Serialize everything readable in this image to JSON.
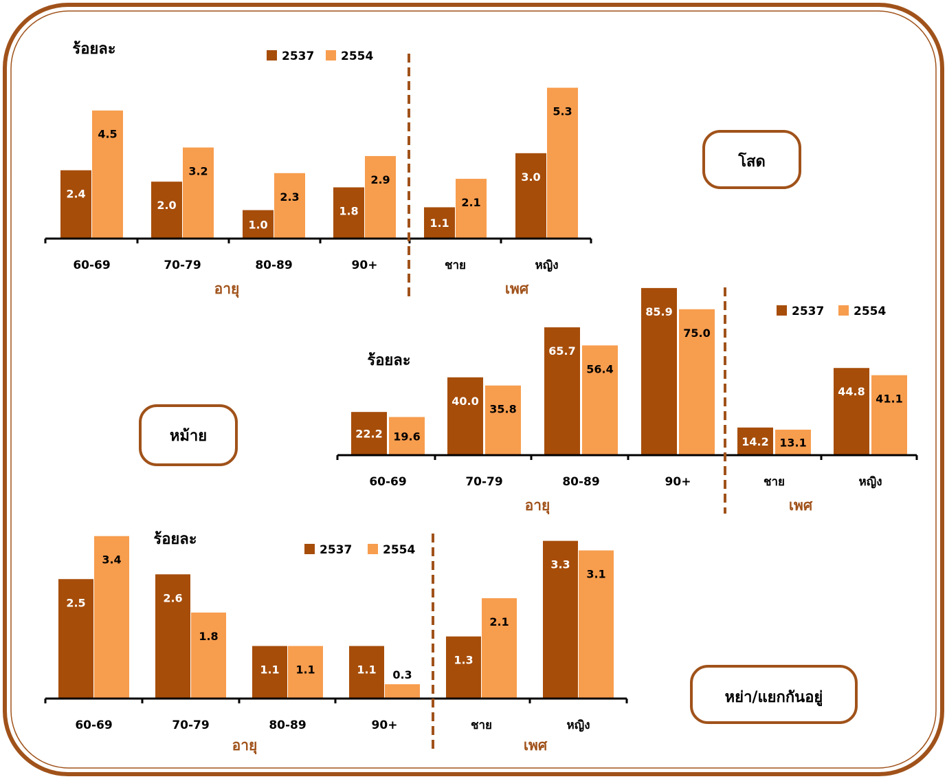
{
  "chart_data": [
    {
      "type": "bar",
      "name": "single",
      "box_label": "โสด",
      "ylabel": "ร้อยละ",
      "legend": [
        "2537",
        "2554"
      ],
      "categories": [
        "60-69",
        "70-79",
        "80-89",
        "90+",
        "ชาย",
        "หญิง"
      ],
      "group_labels": [
        "อายุ",
        "เพศ"
      ],
      "series": [
        {
          "name": "2537",
          "values": [
            2.4,
            2.0,
            1.0,
            1.8,
            1.1,
            3.0
          ]
        },
        {
          "name": "2554",
          "values": [
            4.5,
            3.2,
            2.3,
            2.9,
            2.1,
            5.3
          ]
        }
      ],
      "value_labels": {
        "2537": [
          "2.4",
          "2.0",
          "1.0",
          "1.8",
          "1.1",
          "3.0"
        ],
        "2554": [
          "4.5",
          "3.2",
          "2.3",
          "2.9",
          "2.1",
          "5.3"
        ]
      },
      "ylim": [
        0,
        5.5
      ]
    },
    {
      "type": "bar",
      "name": "widowed",
      "box_label": "หม้าย",
      "ylabel": "ร้อยละ",
      "legend": [
        "2537",
        "2554"
      ],
      "categories": [
        "60-69",
        "70-79",
        "80-89",
        "90+",
        "ชาย",
        "หญิง"
      ],
      "group_labels": [
        "อายุ",
        "เพศ"
      ],
      "series": [
        {
          "name": "2537",
          "values": [
            22.2,
            40.0,
            65.7,
            85.9,
            14.2,
            44.8
          ]
        },
        {
          "name": "2554",
          "values": [
            19.6,
            35.8,
            56.4,
            75.0,
            13.1,
            41.1
          ]
        }
      ],
      "value_labels": {
        "2537": [
          "22.2",
          "40.0",
          "65.7",
          "85.9",
          "14.2",
          "44.8"
        ],
        "2554": [
          "19.6",
          "35.8",
          "56.4",
          "75.0",
          "13.1",
          "41.1"
        ]
      },
      "ylim": [
        0,
        86
      ]
    },
    {
      "type": "bar",
      "name": "divorced",
      "box_label": "หย่า/แยกกันอยู่",
      "ylabel": "ร้อยละ",
      "legend": [
        "2537",
        "2554"
      ],
      "categories": [
        "60-69",
        "70-79",
        "80-89",
        "90+",
        "ชาย",
        "หญิง"
      ],
      "group_labels": [
        "อายุ",
        "เพศ"
      ],
      "series": [
        {
          "name": "2537",
          "values": [
            2.5,
            2.6,
            1.1,
            1.1,
            1.3,
            3.3
          ]
        },
        {
          "name": "2554",
          "values": [
            3.4,
            1.8,
            1.1,
            0.3,
            2.1,
            3.1
          ]
        }
      ],
      "value_labels": {
        "2537": [
          "2.5",
          "2.6",
          "1.1",
          "1.1",
          "1.3",
          "3.3"
        ],
        "2554": [
          "3.4",
          "1.8",
          "1.1",
          "0.3",
          "2.1",
          "3.1"
        ]
      },
      "ylim": [
        0,
        3.4
      ]
    }
  ],
  "colors": {
    "series_2537": "#a64d0a",
    "series_2554": "#f79d4e",
    "frame": "#a0521a",
    "divider": "#a0521a"
  }
}
